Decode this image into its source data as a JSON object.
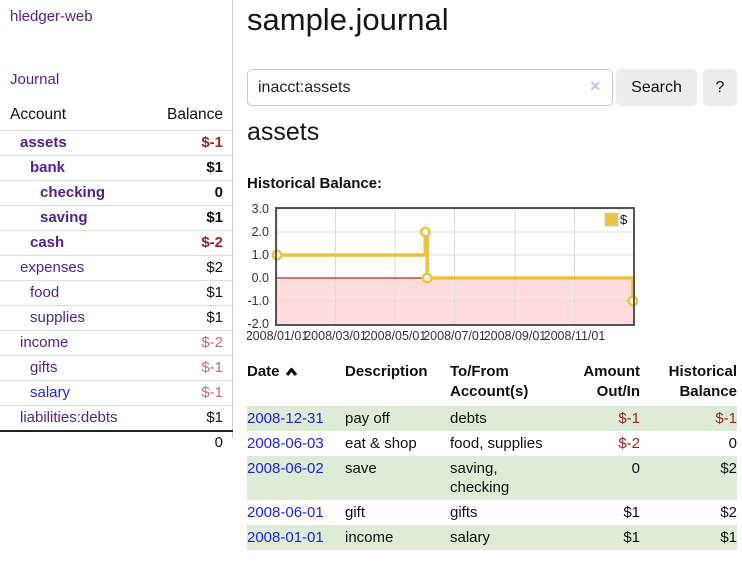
{
  "colors": {
    "link_purple": "#551f8f",
    "link_blue": "#2222dd",
    "negative_strong": "#a22222",
    "negative_soft": "#c56a6d",
    "row_stripe_green": "#ddecd7",
    "series_gold": "#edc240",
    "negative_region_pink": "#ffdddd",
    "zero_line_red": "#8b0000",
    "grid_gray": "#dcdcdc",
    "chart_border": "#545454",
    "button_gray": "#ececec"
  },
  "sidebar": {
    "app_title": "hledger-web",
    "nav_journal": "Journal",
    "accounts_table": {
      "headers": [
        "Account",
        "Balance"
      ],
      "rows": [
        {
          "name": "assets",
          "depth": 1,
          "bold": true,
          "balance": "$-1",
          "balance_class": "neg-strong"
        },
        {
          "name": "bank",
          "depth": 2,
          "bold": true,
          "balance": "$1",
          "balance_class": "pos"
        },
        {
          "name": "checking",
          "depth": 3,
          "bold": true,
          "balance": "0",
          "balance_class": "pos"
        },
        {
          "name": "saving",
          "depth": 3,
          "bold": true,
          "balance": "$1",
          "balance_class": "pos"
        },
        {
          "name": "cash",
          "depth": 2,
          "bold": true,
          "balance": "$-2",
          "balance_class": "neg-strong"
        },
        {
          "name": "expenses",
          "depth": 1,
          "bold": false,
          "balance": "$2",
          "balance_class": "pos"
        },
        {
          "name": "food",
          "depth": 2,
          "bold": false,
          "balance": "$1",
          "balance_class": "pos"
        },
        {
          "name": "supplies",
          "depth": 2,
          "bold": false,
          "balance": "$1",
          "balance_class": "pos"
        },
        {
          "name": "income",
          "depth": 1,
          "bold": false,
          "balance": "$-2",
          "balance_class": "neg-soft"
        },
        {
          "name": "gifts",
          "depth": 2,
          "bold": false,
          "balance": "$-1",
          "balance_class": "neg-soft"
        },
        {
          "name": "salary",
          "depth": 2,
          "bold": false,
          "balance": "$-1",
          "balance_class": "neg-soft",
          "link_class": "blue"
        },
        {
          "name": "liabilities:debts",
          "depth": 1,
          "bold": false,
          "balance": "$1",
          "balance_class": "pos"
        }
      ],
      "total": "0"
    }
  },
  "header": {
    "title": "sample.journal"
  },
  "search": {
    "value": "inacct:assets",
    "clear_icon": "×",
    "button_label": "Search",
    "help_label": "?"
  },
  "account_page": {
    "heading": "assets",
    "chart_title": "Historical Balance:"
  },
  "chart_data": {
    "type": "line",
    "title": "Historical Balance",
    "step": true,
    "grid": true,
    "legend": {
      "label": "$",
      "position": "top-right"
    },
    "x_range": [
      "2008/01/01",
      "2008/12/31"
    ],
    "x_ticks": [
      "2008/01/01",
      "2008/03/01",
      "2008/05/01",
      "2008/07/01",
      "2008/09/01",
      "2008/11/01"
    ],
    "y_ticks": [
      -2,
      -1,
      0,
      1,
      2,
      3
    ],
    "ylim": [
      -2,
      3
    ],
    "series": [
      {
        "name": "$",
        "color": "#edc240",
        "points": [
          [
            "2008/01/01",
            1
          ],
          [
            "2008/06/01",
            2
          ],
          [
            "2008/06/03",
            0
          ],
          [
            "2008/12/31",
            -1
          ]
        ]
      }
    ],
    "negative_region_color": "#ffdddd",
    "zero_line_color": "#8b0000",
    "grid_color": "#dcdcdc",
    "border_color": "#545454"
  },
  "register": {
    "headers": [
      "Date",
      "Description",
      "To/From Account(s)",
      "Amount Out/In",
      "Historical Balance"
    ],
    "sort_column": "Date",
    "sort_direction": "ascending",
    "rows": [
      {
        "date": "2008-12-31",
        "description": "pay off",
        "accounts": "debts",
        "amount": "$-1",
        "amount_class": "neg",
        "balance": "$-1",
        "balance_class": "neg"
      },
      {
        "date": "2008-06-03",
        "description": "eat & shop",
        "accounts": "food, supplies",
        "amount": "$-2",
        "amount_class": "neg",
        "balance": "0",
        "balance_class": "pos"
      },
      {
        "date": "2008-06-02",
        "description": "save",
        "accounts": "saving, checking",
        "amount": "0",
        "amount_class": "pos",
        "balance": "$2",
        "balance_class": "pos"
      },
      {
        "date": "2008-06-01",
        "description": "gift",
        "accounts": "gifts",
        "amount": "$1",
        "amount_class": "pos",
        "balance": "$2",
        "balance_class": "pos"
      },
      {
        "date": "2008-01-01",
        "description": "income",
        "accounts": "salary",
        "amount": "$1",
        "amount_class": "pos",
        "balance": "$1",
        "balance_class": "pos"
      }
    ]
  }
}
